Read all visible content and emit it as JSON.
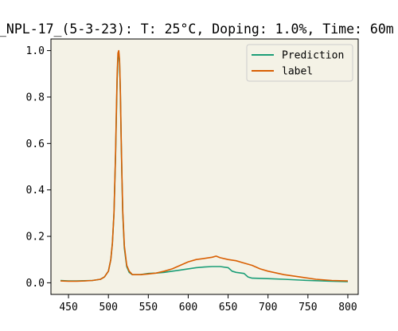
{
  "chart_data": {
    "type": "line",
    "title": "_NPL-17_(5-3-23): T: 25°C, Doping: 1.0%, Time: 60m",
    "xlabel": "",
    "ylabel": "",
    "xlim": [
      428,
      813
    ],
    "ylim": [
      -0.05,
      1.05
    ],
    "xticks": [
      450,
      500,
      550,
      600,
      650,
      700,
      750,
      800
    ],
    "xtick_labels": [
      "450",
      "500",
      "550",
      "600",
      "650",
      "700",
      "750",
      "800"
    ],
    "yticks": [
      0.0,
      0.2,
      0.4,
      0.6,
      0.8,
      1.0
    ],
    "ytick_labels": [
      "0.0",
      "0.2",
      "0.4",
      "0.6",
      "0.8",
      "1.0"
    ],
    "grid": false,
    "legend_position": "top-right",
    "plot_background": "#f4f2e6",
    "series": [
      {
        "name": "Prediction",
        "color": "#1b9e77",
        "x": [
          440,
          450,
          460,
          470,
          480,
          490,
          495,
          500,
          503,
          505,
          507,
          509,
          510,
          511,
          512,
          513,
          514,
          515,
          516,
          517,
          518,
          520,
          523,
          526,
          530,
          540,
          550,
          560,
          570,
          580,
          590,
          600,
          610,
          620,
          630,
          640,
          650,
          655,
          660,
          670,
          675,
          680,
          700,
          720,
          750,
          780,
          800
        ],
        "y": [
          0.01,
          0.008,
          0.008,
          0.009,
          0.01,
          0.015,
          0.025,
          0.05,
          0.1,
          0.17,
          0.3,
          0.55,
          0.72,
          0.88,
          0.97,
          0.99,
          0.95,
          0.82,
          0.62,
          0.45,
          0.3,
          0.15,
          0.07,
          0.045,
          0.035,
          0.035,
          0.04,
          0.042,
          0.045,
          0.05,
          0.055,
          0.06,
          0.065,
          0.068,
          0.07,
          0.07,
          0.065,
          0.05,
          0.045,
          0.04,
          0.025,
          0.02,
          0.018,
          0.015,
          0.01,
          0.007,
          0.005
        ]
      },
      {
        "name": "label",
        "color": "#d95f02",
        "x": [
          440,
          450,
          460,
          470,
          480,
          490,
          495,
          500,
          503,
          505,
          507,
          509,
          510,
          511,
          512,
          513,
          514,
          515,
          516,
          517,
          518,
          520,
          523,
          526,
          530,
          540,
          550,
          560,
          570,
          580,
          590,
          600,
          610,
          620,
          630,
          635,
          640,
          650,
          660,
          670,
          680,
          690,
          700,
          720,
          740,
          760,
          780,
          800
        ],
        "y": [
          0.008,
          0.007,
          0.007,
          0.008,
          0.01,
          0.015,
          0.025,
          0.05,
          0.1,
          0.17,
          0.3,
          0.56,
          0.74,
          0.9,
          0.99,
          1.0,
          0.96,
          0.83,
          0.63,
          0.46,
          0.31,
          0.16,
          0.075,
          0.05,
          0.035,
          0.035,
          0.038,
          0.042,
          0.05,
          0.06,
          0.075,
          0.09,
          0.1,
          0.105,
          0.11,
          0.115,
          0.108,
          0.1,
          0.095,
          0.085,
          0.075,
          0.06,
          0.05,
          0.035,
          0.025,
          0.015,
          0.01,
          0.008
        ]
      }
    ]
  }
}
